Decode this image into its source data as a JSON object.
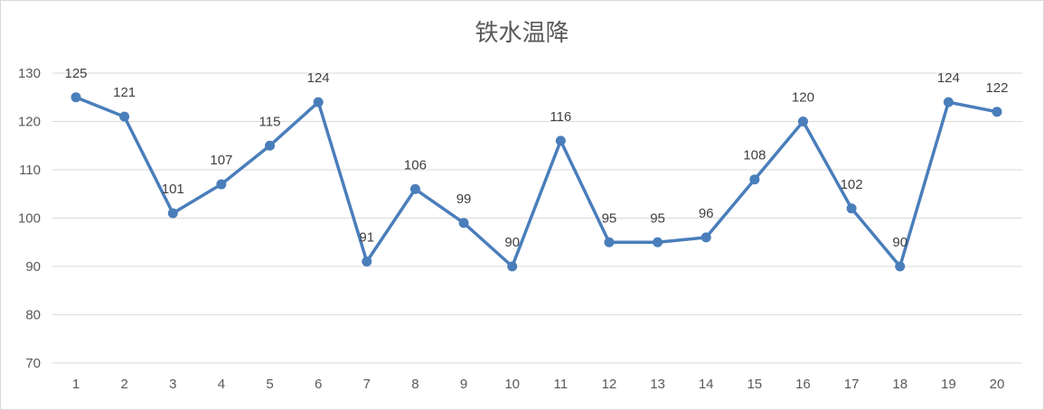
{
  "chart_data": {
    "type": "line",
    "title": "铁水温降",
    "xlabel": "",
    "ylabel": "",
    "categories": [
      "1",
      "2",
      "3",
      "4",
      "5",
      "6",
      "7",
      "8",
      "9",
      "10",
      "11",
      "12",
      "13",
      "14",
      "15",
      "16",
      "17",
      "18",
      "19",
      "20"
    ],
    "series": [
      {
        "values": [
          125,
          121,
          101,
          107,
          115,
          124,
          91,
          106,
          99,
          90,
          116,
          95,
          95,
          96,
          108,
          120,
          102,
          90,
          124,
          122
        ]
      }
    ],
    "ylim": [
      70,
      130
    ],
    "yticks": [
      70,
      80,
      90,
      100,
      110,
      120,
      130
    ],
    "grid": true,
    "data_labels": true,
    "legend": "none",
    "colors": {
      "series": "#4a7ebb",
      "grid": "#d9d9d9",
      "text": "#595959",
      "label": "#404040"
    }
  }
}
